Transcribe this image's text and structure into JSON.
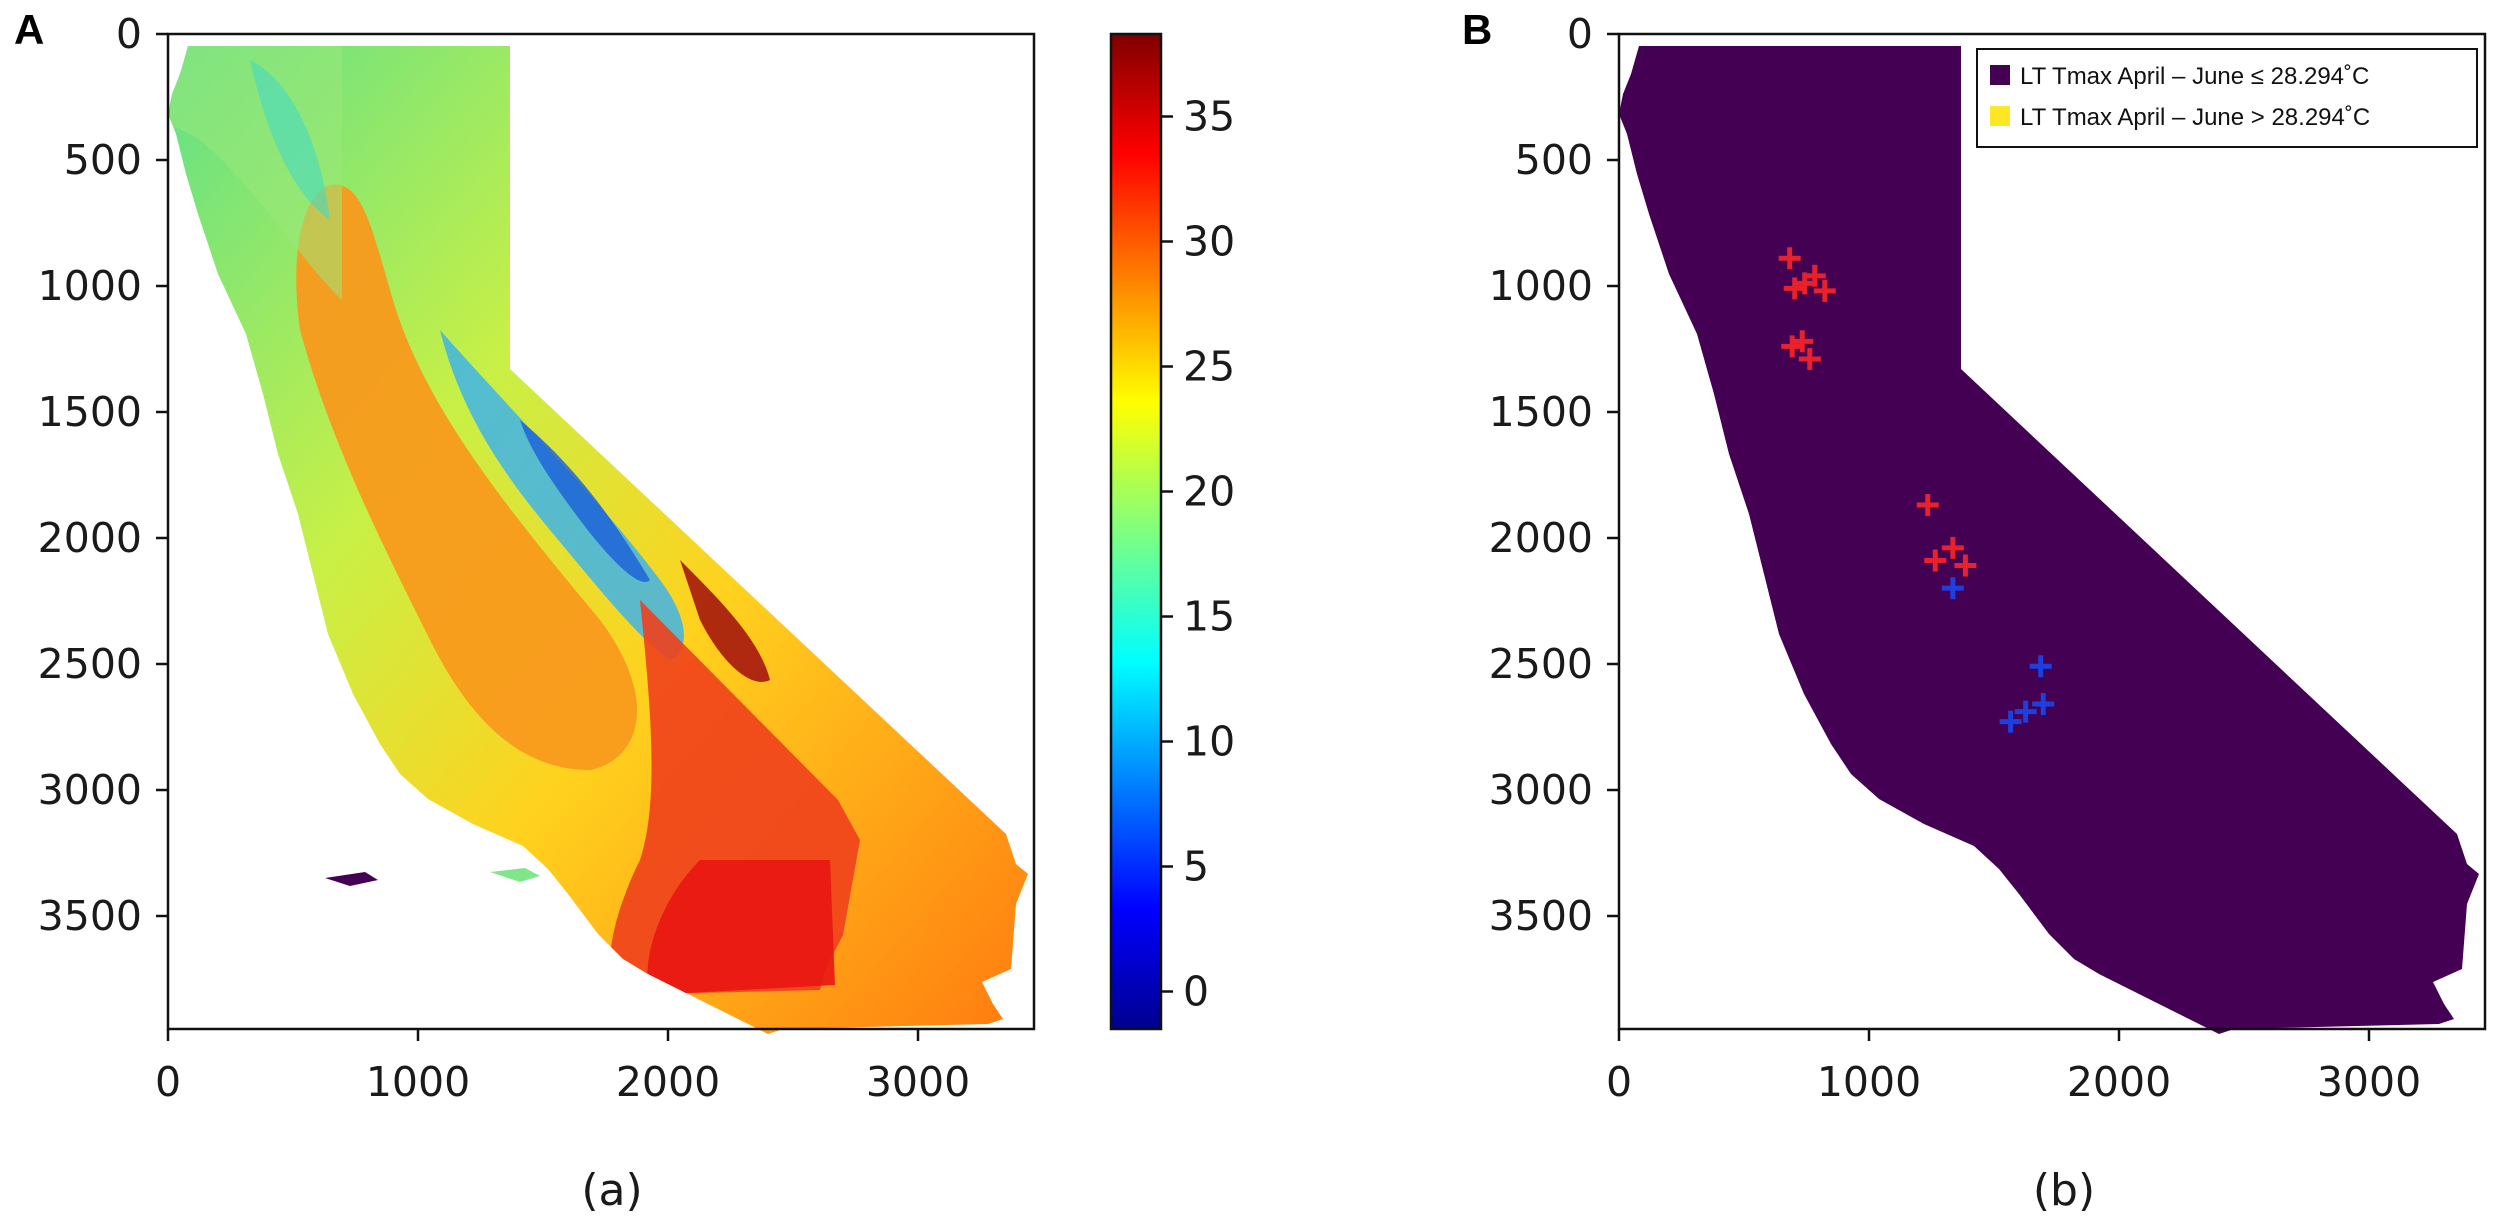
{
  "panel_a": {
    "letter": "A",
    "caption": "(a)",
    "x_ticks": [
      "0",
      "1000",
      "2000",
      "3000"
    ],
    "y_ticks": [
      "0",
      "500",
      "1000",
      "1500",
      "2000",
      "2500",
      "3000",
      "3500"
    ],
    "colorbar": {
      "ticks": [
        "0",
        "5",
        "10",
        "15",
        "20",
        "25",
        "30",
        "35"
      ],
      "min": -1.5,
      "max": 38.3,
      "colormap": "jet"
    }
  },
  "panel_b": {
    "letter": "B",
    "caption": "(b)",
    "x_ticks": [
      "0",
      "1000",
      "2000",
      "3000"
    ],
    "y_ticks": [
      "0",
      "500",
      "1000",
      "1500",
      "2000",
      "2500",
      "3000",
      "3500"
    ],
    "legend": [
      {
        "label": "LT Tmax April – June ≤ 28.294˚C",
        "color": "#440154"
      },
      {
        "label": "LT Tmax April – June > 28.294˚C",
        "color": "#fde725"
      }
    ],
    "marker_colors": {
      "red": "#e8212b",
      "blue": "#1c3fe0"
    }
  },
  "chart_data": [
    {
      "type": "heatmap",
      "title": "",
      "x_range": [
        0,
        3450
      ],
      "y_range": [
        3950,
        0
      ],
      "x_ticks": [
        0,
        1000,
        2000,
        3000
      ],
      "y_ticks": [
        0,
        500,
        1000,
        1500,
        2000,
        2500,
        3000,
        3500
      ],
      "colorbar_range": [
        -1.5,
        38.3
      ],
      "colorbar_ticks": [
        0,
        5,
        10,
        15,
        20,
        25,
        30,
        35
      ]
    },
    {
      "type": "heatmap",
      "title": "",
      "x_range": [
        0,
        3450
      ],
      "y_range": [
        3950,
        0
      ],
      "x_ticks": [
        0,
        1000,
        2000,
        3000
      ],
      "y_ticks": [
        0,
        500,
        1000,
        1500,
        2000,
        2500,
        3000,
        3500
      ],
      "categories": [
        "LT Tmax April – June ≤ 28.294˚C",
        "LT Tmax April – June > 28.294˚C"
      ],
      "points": [
        {
          "color": "red",
          "x": 680,
          "y": 890
        },
        {
          "color": "red",
          "x": 700,
          "y": 1010
        },
        {
          "color": "red",
          "x": 740,
          "y": 990
        },
        {
          "color": "red",
          "x": 780,
          "y": 960
        },
        {
          "color": "red",
          "x": 820,
          "y": 1020
        },
        {
          "color": "red",
          "x": 690,
          "y": 1240
        },
        {
          "color": "red",
          "x": 730,
          "y": 1220
        },
        {
          "color": "red",
          "x": 760,
          "y": 1290
        },
        {
          "color": "red",
          "x": 1230,
          "y": 1870
        },
        {
          "color": "red",
          "x": 1260,
          "y": 2090
        },
        {
          "color": "red",
          "x": 1330,
          "y": 2040
        },
        {
          "color": "red",
          "x": 1380,
          "y": 2110
        },
        {
          "color": "blue",
          "x": 1330,
          "y": 2200
        },
        {
          "color": "blue",
          "x": 1680,
          "y": 2510
        },
        {
          "color": "blue",
          "x": 1560,
          "y": 2730
        },
        {
          "color": "blue",
          "x": 1620,
          "y": 2690
        },
        {
          "color": "blue",
          "x": 1690,
          "y": 2660
        }
      ]
    }
  ]
}
